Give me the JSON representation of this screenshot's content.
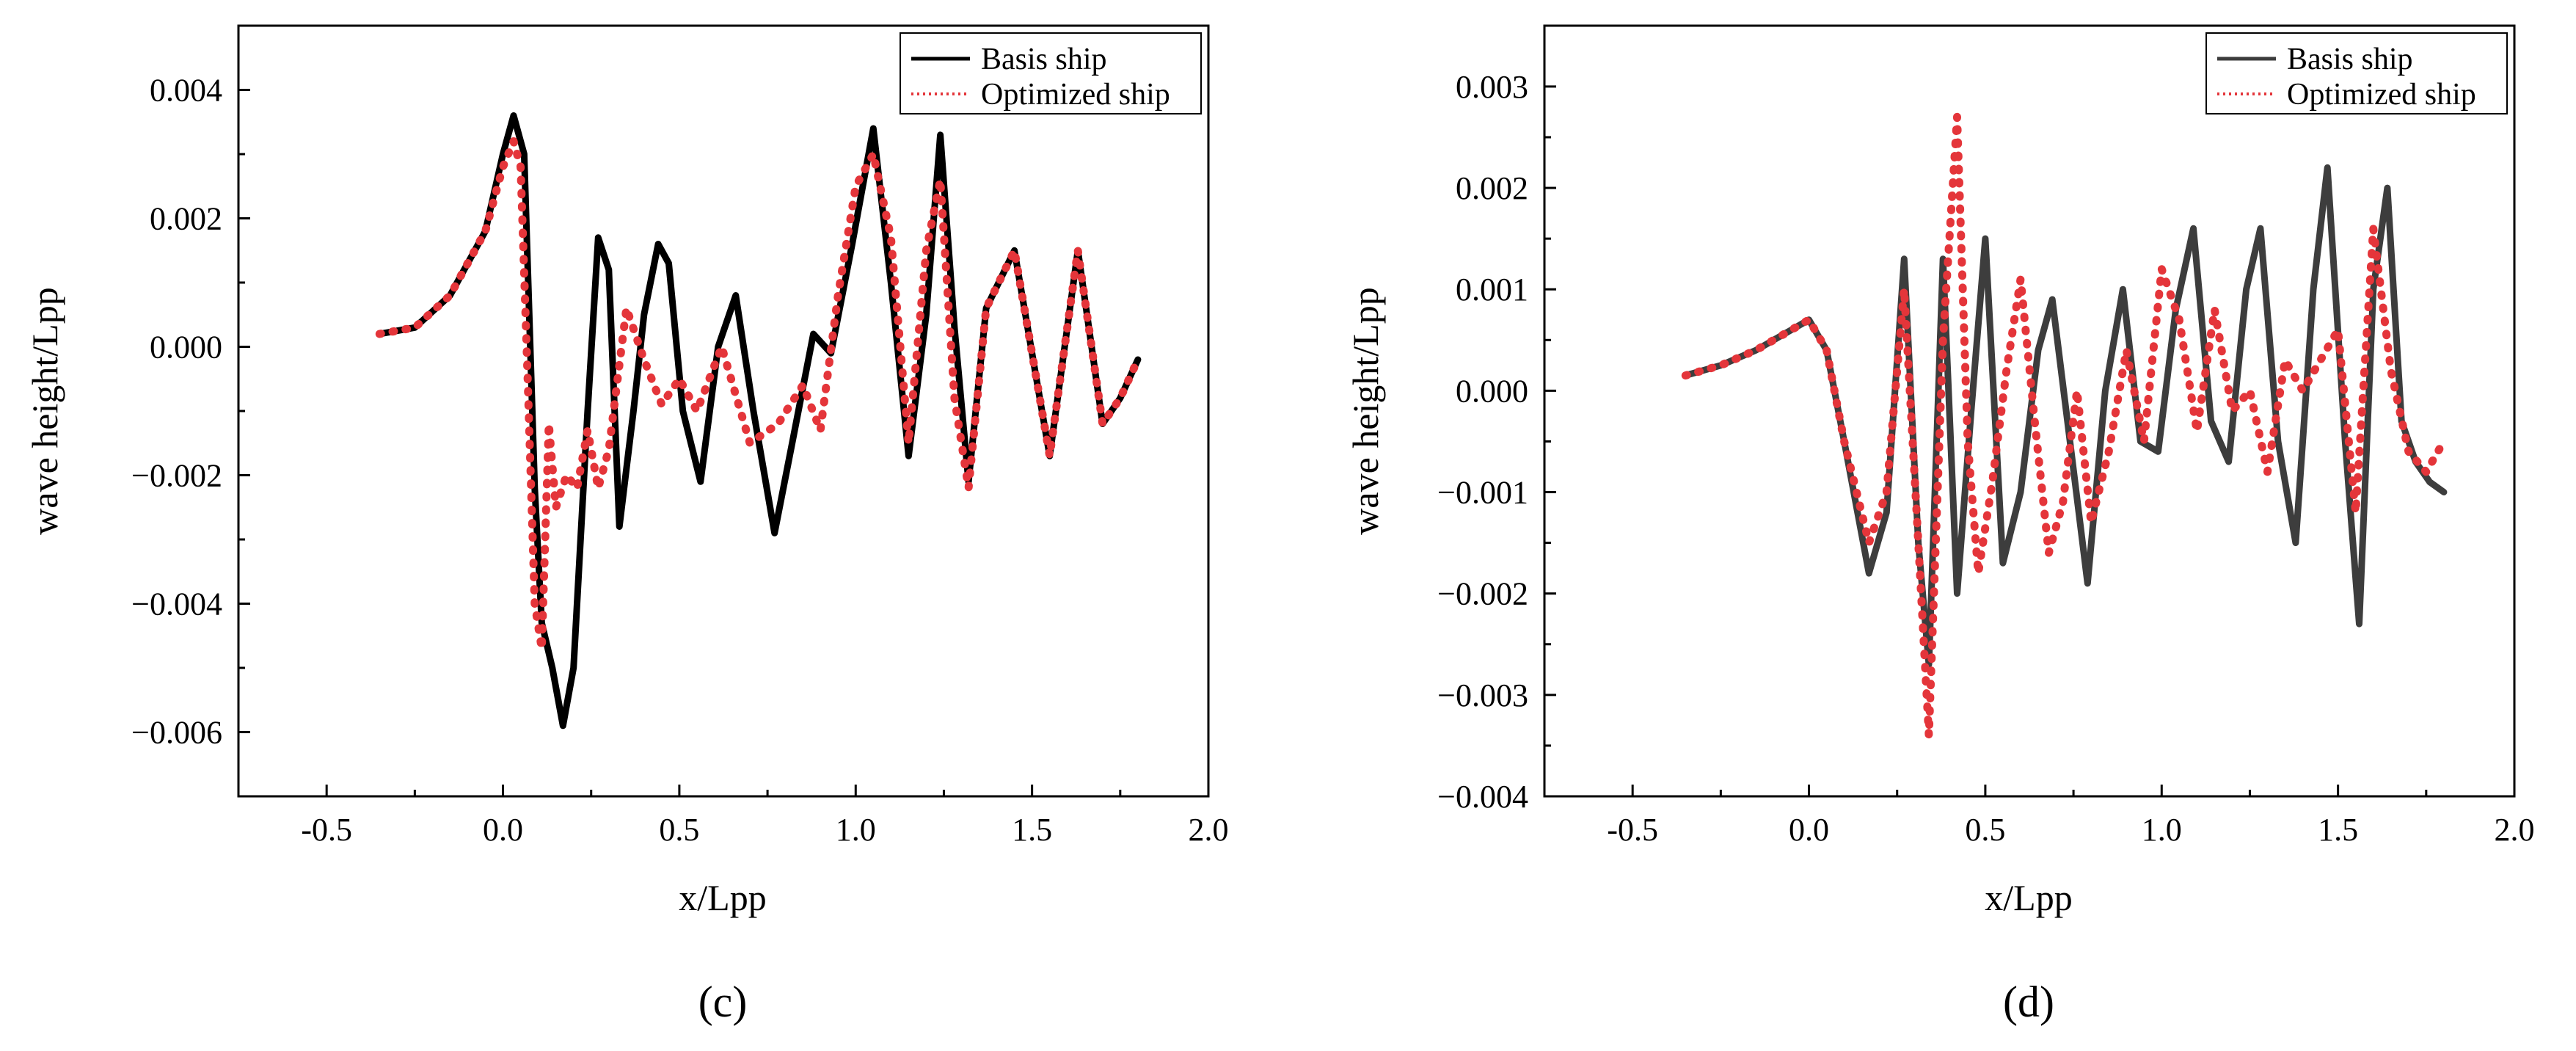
{
  "colors": {
    "basis_c": "#000000",
    "basis_d": "#3d3d3d",
    "optimized": "#e4353a"
  },
  "chart_data": [
    {
      "type": "line",
      "panel_label": "(c)",
      "xlabel": "x/Lpp",
      "ylabel": "wave height/Lpp",
      "xlim": [
        -0.75,
        2.0
      ],
      "ylim": [
        -0.007,
        0.005
      ],
      "xticks": [
        -0.5,
        0.0,
        0.5,
        1.0,
        1.5,
        2.0
      ],
      "xtick_labels": [
        "-0.5",
        "0.0",
        "0.5",
        "1.0",
        "1.5",
        "2.0"
      ],
      "yticks": [
        0.004,
        0.002,
        0.0,
        -0.002,
        -0.004,
        -0.006
      ],
      "ytick_labels": [
        "0.004",
        "0.002",
        "0.000",
        "−0.002",
        "−0.004",
        "−0.006"
      ],
      "grid": false,
      "legend_position": "top-right",
      "series": [
        {
          "name": "Basis ship",
          "style": "solid",
          "x": [
            -0.35,
            -0.25,
            -0.15,
            -0.05,
            0.0,
            0.03,
            0.06,
            0.09,
            0.11,
            0.14,
            0.17,
            0.2,
            0.24,
            0.27,
            0.3,
            0.33,
            0.37,
            0.4,
            0.44,
            0.47,
            0.51,
            0.56,
            0.61,
            0.66,
            0.71,
            0.77,
            0.82,
            0.88,
            0.93,
            0.99,
            1.05,
            1.1,
            1.15,
            1.2,
            1.24,
            1.28,
            1.32,
            1.37,
            1.45,
            1.55,
            1.63,
            1.7,
            1.75,
            1.8
          ],
          "y": [
            0.0002,
            0.0003,
            0.0008,
            0.0018,
            0.003,
            0.0036,
            0.003,
            -0.0022,
            -0.0043,
            -0.005,
            -0.0059,
            -0.005,
            -0.001,
            0.0017,
            0.0012,
            -0.0028,
            -0.001,
            0.0005,
            0.0016,
            0.0013,
            -0.001,
            -0.0021,
            0.0,
            0.0008,
            -0.001,
            -0.0029,
            -0.0015,
            0.0002,
            -0.0001,
            0.0016,
            0.0034,
            0.001,
            -0.0017,
            0.0005,
            0.0033,
            0.0003,
            -0.0021,
            0.0006,
            0.0015,
            -0.0017,
            0.0015,
            -0.0012,
            -0.0008,
            -0.0002
          ]
        },
        {
          "name": "Optimized ship",
          "style": "dotted",
          "x": [
            -0.35,
            -0.25,
            -0.15,
            -0.05,
            0.0,
            0.03,
            0.05,
            0.07,
            0.09,
            0.11,
            0.13,
            0.15,
            0.18,
            0.21,
            0.24,
            0.27,
            0.3,
            0.35,
            0.4,
            0.45,
            0.5,
            0.55,
            0.62,
            0.7,
            0.78,
            0.85,
            0.9,
            0.95,
            1.0,
            1.05,
            1.1,
            1.15,
            1.2,
            1.24,
            1.28,
            1.32,
            1.37,
            1.45,
            1.55,
            1.63,
            1.7,
            1.75,
            1.8
          ],
          "y": [
            0.0002,
            0.0003,
            0.0008,
            0.0018,
            0.0028,
            0.0032,
            0.0028,
            -0.0005,
            -0.004,
            -0.0047,
            -0.0012,
            -0.0025,
            -0.002,
            -0.0022,
            -0.0013,
            -0.0022,
            -0.0016,
            0.0006,
            -0.0002,
            -0.0009,
            -0.0005,
            -0.001,
            0.0,
            -0.0015,
            -0.0012,
            -0.0006,
            -0.0013,
            0.0008,
            0.0025,
            0.003,
            0.0017,
            -0.0015,
            0.0015,
            0.0026,
            -0.0008,
            -0.0022,
            0.0006,
            0.0015,
            -0.0017,
            0.0015,
            -0.0012,
            -0.0008,
            -0.0002
          ]
        }
      ]
    },
    {
      "type": "line",
      "panel_label": "(d)",
      "xlabel": "x/Lpp",
      "ylabel": "wave height/Lpp",
      "xlim": [
        -0.75,
        2.0
      ],
      "ylim": [
        -0.004,
        0.0036
      ],
      "xticks": [
        -0.5,
        0.0,
        0.5,
        1.0,
        1.5,
        2.0
      ],
      "xtick_labels": [
        "-0.5",
        "0.0",
        "0.5",
        "1.0",
        "1.5",
        "2.0"
      ],
      "yticks": [
        0.003,
        0.002,
        0.001,
        0.0,
        -0.001,
        -0.002,
        -0.003,
        -0.004
      ],
      "ytick_labels": [
        "0.003",
        "0.002",
        "0.001",
        "0.000",
        "−0.001",
        "−0.002",
        "−0.003",
        "−0.004"
      ],
      "grid": false,
      "legend_position": "top-right",
      "series": [
        {
          "name": "Basis ship",
          "style": "solid",
          "x": [
            -0.35,
            -0.25,
            -0.15,
            -0.05,
            0.0,
            0.05,
            0.1,
            0.17,
            0.22,
            0.27,
            0.31,
            0.34,
            0.38,
            0.42,
            0.46,
            0.5,
            0.55,
            0.6,
            0.65,
            0.69,
            0.74,
            0.79,
            0.84,
            0.89,
            0.94,
            0.99,
            1.04,
            1.09,
            1.14,
            1.19,
            1.24,
            1.28,
            1.33,
            1.38,
            1.43,
            1.47,
            1.52,
            1.56,
            1.6,
            1.64,
            1.68,
            1.72,
            1.76,
            1.8
          ],
          "y": [
            0.00015,
            0.00025,
            0.0004,
            0.0006,
            0.0007,
            0.0004,
            -0.0005,
            -0.0018,
            -0.0012,
            0.0013,
            -0.0015,
            -0.0027,
            0.0013,
            -0.002,
            -0.0002,
            0.0015,
            -0.0017,
            -0.001,
            0.0004,
            0.0009,
            -0.0005,
            -0.0019,
            0.0,
            0.001,
            -0.0005,
            -0.0006,
            0.0008,
            0.0016,
            -0.0003,
            -0.0007,
            0.001,
            0.0016,
            -0.0005,
            -0.0015,
            0.001,
            0.0022,
            -0.0005,
            -0.0023,
            0.001,
            0.002,
            -0.0003,
            -0.0007,
            -0.0009,
            -0.001
          ]
        },
        {
          "name": "Optimized ship",
          "style": "dotted",
          "x": [
            -0.35,
            -0.25,
            -0.15,
            -0.05,
            0.0,
            0.05,
            0.1,
            0.17,
            0.22,
            0.27,
            0.31,
            0.34,
            0.38,
            0.42,
            0.45,
            0.48,
            0.52,
            0.56,
            0.6,
            0.64,
            0.68,
            0.72,
            0.76,
            0.8,
            0.85,
            0.9,
            0.95,
            1.0,
            1.05,
            1.1,
            1.15,
            1.2,
            1.25,
            1.3,
            1.35,
            1.4,
            1.45,
            1.5,
            1.55,
            1.6,
            1.65,
            1.7,
            1.75,
            1.8
          ],
          "y": [
            0.00015,
            0.00025,
            0.0004,
            0.0006,
            0.0007,
            0.0004,
            -0.0005,
            -0.0015,
            -0.001,
            0.001,
            -0.0015,
            -0.0034,
            0.0005,
            0.0027,
            -0.0005,
            -0.0018,
            -0.0009,
            0.0002,
            0.0011,
            -0.0003,
            -0.0016,
            -0.0011,
            0.0,
            -0.0013,
            -0.0006,
            0.0004,
            -0.0005,
            0.0012,
            0.0007,
            -0.0004,
            0.0008,
            -0.0002,
            0.0,
            -0.0008,
            0.0003,
            0.0,
            0.0003,
            0.0006,
            -0.0012,
            0.0016,
            0.0002,
            -0.0006,
            -0.0008,
            -0.0005
          ]
        }
      ]
    }
  ]
}
